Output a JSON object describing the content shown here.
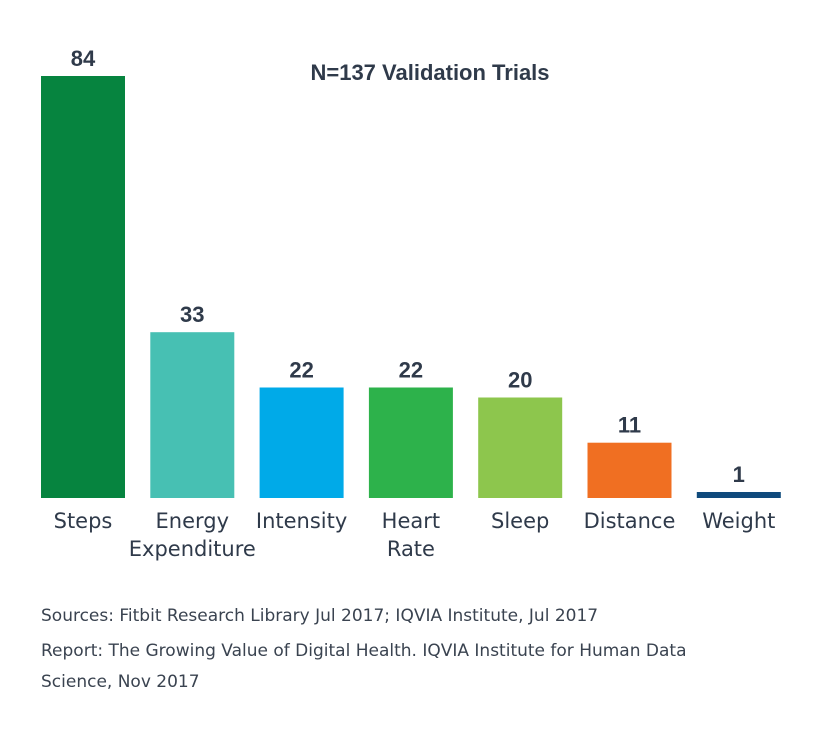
{
  "chart_data": {
    "type": "bar",
    "title": "N=137 Validation Trials",
    "categories": [
      [
        "Steps"
      ],
      [
        "Energy",
        "Expenditure"
      ],
      [
        "Intensity"
      ],
      [
        "Heart",
        "Rate"
      ],
      [
        "Sleep"
      ],
      [
        "Distance"
      ],
      [
        "Weight"
      ]
    ],
    "values": [
      84,
      33,
      22,
      22,
      20,
      11,
      1
    ],
    "colors": [
      "#06843f",
      "#47c0b3",
      "#00aae8",
      "#2db24b",
      "#8dc64d",
      "#f06f22",
      "#0f4a7c"
    ],
    "ylim": [
      0,
      84
    ],
    "grid": false,
    "legend": "none"
  },
  "footer": {
    "sources": "Sources: Fitbit Research Library Jul 2017; IQVIA Institute, Jul 2017",
    "report_line1": "Report: The Growing Value of Digital Health. IQVIA Institute for Human Data",
    "report_line2": "Science, Nov 2017"
  }
}
